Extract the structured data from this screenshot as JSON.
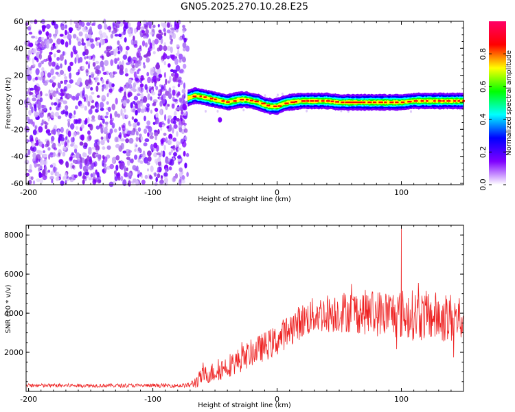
{
  "title": "GN05.2025.270.10.28.E25",
  "chart_data": [
    {
      "type": "heatmap",
      "name": "spectrogram",
      "xlabel": "Height of straight line (km)",
      "ylabel": "Frequency (Hz)",
      "xlim": [
        -202,
        150
      ],
      "ylim": [
        -61,
        60
      ],
      "xticks": [
        -200,
        -100,
        0,
        100
      ],
      "xtick_labels": [
        "-200",
        "-100",
        "0",
        "100"
      ],
      "yticks": [
        60,
        40,
        20,
        0,
        -20,
        -40,
        -60
      ],
      "ytick_labels": [
        "60",
        "40",
        "20",
        "0",
        "-20",
        "-40",
        "-60"
      ],
      "noise_region_x": [
        -202,
        -72
      ],
      "signal_start_x": -72,
      "signal_track": {
        "x": [
          -72,
          -66,
          -60,
          -55,
          -50,
          -45,
          -40,
          -35,
          -30,
          -25,
          -20,
          -15,
          -10,
          -5,
          0,
          5,
          10,
          20,
          30,
          40,
          50,
          60,
          70,
          80,
          90,
          100,
          110,
          120,
          130,
          140,
          150
        ],
        "freq": [
          3,
          5,
          4,
          3,
          2,
          1,
          0,
          1,
          2,
          2,
          1,
          0,
          -2,
          -3,
          -3,
          -1,
          0,
          1,
          1,
          1,
          0,
          0,
          0,
          0,
          0,
          0,
          1,
          1,
          1,
          1,
          1
        ]
      },
      "colorbar": {
        "label": "Normalized spectral amplitude",
        "range": [
          0,
          1
        ],
        "ticks": [
          "0.0",
          "0.2",
          "0.4",
          "0.6",
          "0.8"
        ],
        "colors": [
          "#ffffff",
          "#7f00ff",
          "#0000ff",
          "#00ffff",
          "#00ff00",
          "#ffff00",
          "#ff0000",
          "#ff0066"
        ]
      }
    },
    {
      "type": "line",
      "name": "snr",
      "xlabel": "Height of straight line (km)",
      "ylabel": "SNR (10 * v/v)",
      "xlim": [
        -202,
        150
      ],
      "ylim": [
        0,
        8500
      ],
      "xticks": [
        -200,
        -100,
        0,
        100
      ],
      "xtick_labels": [
        "-200",
        "-100",
        "0",
        "100"
      ],
      "yticks": [
        2000,
        4000,
        6000,
        8000
      ],
      "ytick_labels": [
        "2000",
        "4000",
        "6000",
        "8000"
      ],
      "color": "#ee2222",
      "envelope": {
        "x": [
          -202,
          -75,
          -70,
          -65,
          -60,
          -50,
          -40,
          -30,
          -20,
          -10,
          0,
          10,
          20,
          30,
          40,
          50,
          60,
          70,
          80,
          90,
          100,
          110,
          120,
          130,
          140,
          150
        ],
        "mean": [
          300,
          300,
          320,
          500,
          800,
          1000,
          1300,
          1600,
          2000,
          2300,
          2600,
          3200,
          3600,
          3900,
          4000,
          4050,
          4100,
          4050,
          4000,
          4000,
          3950,
          3900,
          3850,
          3800,
          3750,
          3700
        ],
        "spread": [
          100,
          100,
          150,
          350,
          450,
          550,
          600,
          650,
          700,
          750,
          800,
          850,
          900,
          950,
          1000,
          1050,
          1100,
          1150,
          1200,
          1250,
          1300,
          1300,
          1300,
          1300,
          1300,
          1300
        ]
      },
      "peak": {
        "x": 100,
        "value": 8500
      }
    }
  ]
}
